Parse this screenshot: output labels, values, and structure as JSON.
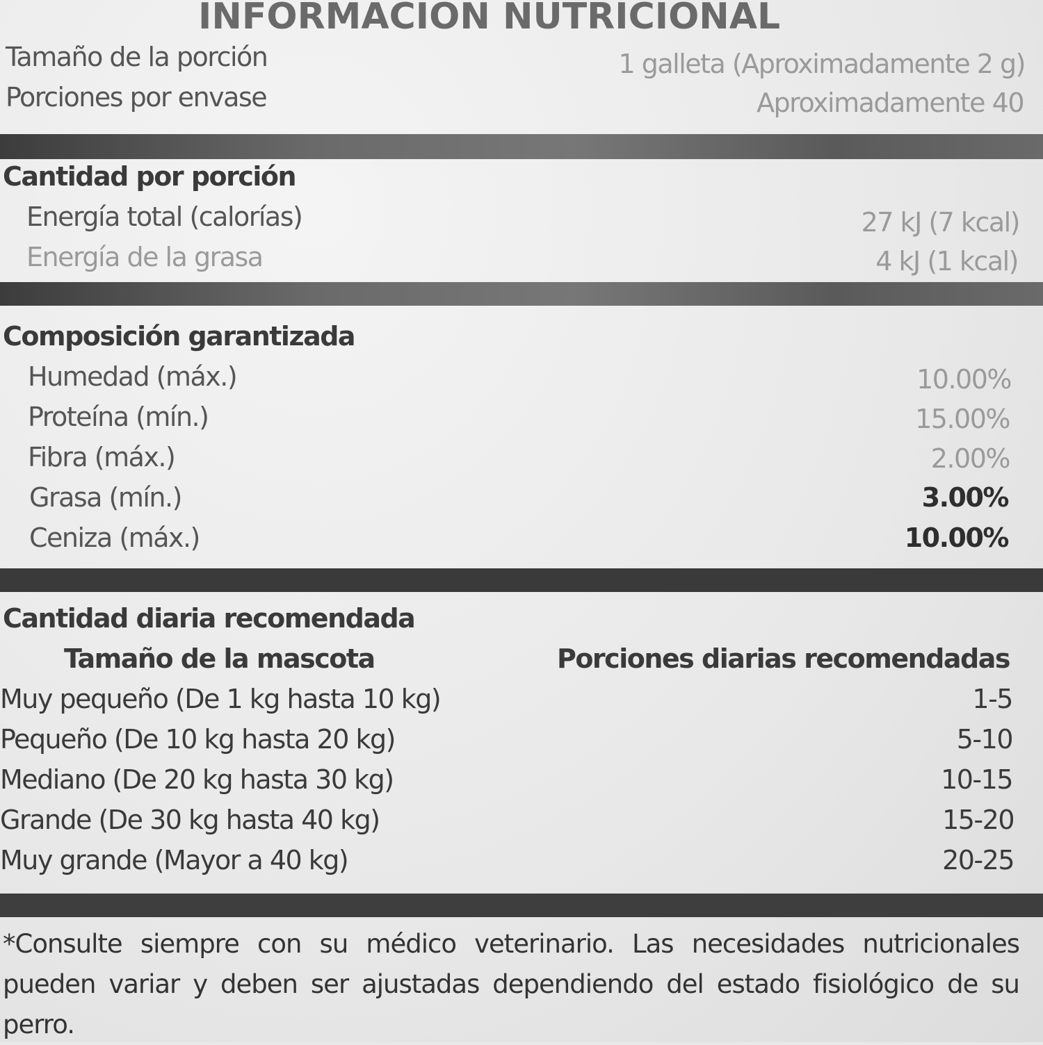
{
  "title": "INFORMACIÓN NUTRICIONAL",
  "serving": {
    "size_label": "Tamaño de la porción",
    "size_value": "1 galleta  (Aproximadamente 2 g)",
    "per_container_label": "Porciones por envase",
    "per_container_value": "Aproximadamente 40"
  },
  "amount_per_serving": {
    "heading": "Cantidad por porción",
    "rows": [
      {
        "label": "Energía total (calorías)",
        "value": "27 kJ (7 kcal)"
      },
      {
        "label": "Energía de la grasa",
        "value": "4 kJ (1 kcal)"
      }
    ]
  },
  "guaranteed_analysis": {
    "heading": "Composición garantizada",
    "rows": [
      {
        "label": "Humedad (máx.)",
        "value": "10.00%"
      },
      {
        "label": "Proteína (mín.)",
        "value": "15.00%"
      },
      {
        "label": "Fibra (máx.)",
        "value": "2.00%"
      },
      {
        "label": "Grasa (mín.)",
        "value": "3.00%"
      },
      {
        "label": "Ceniza (máx.)",
        "value": "10.00%"
      }
    ]
  },
  "daily_recommendation": {
    "heading": "Cantidad diaria recomendada",
    "col_size": "Tamaño de la mascota",
    "col_portions": "Porciones diarias recomendadas",
    "rows": [
      {
        "size": "Muy pequeño (De 1 kg hasta 10 kg)",
        "portions": "1-5"
      },
      {
        "size": "Pequeño (De 10 kg hasta 20 kg)",
        "portions": "5-10"
      },
      {
        "size": "Mediano (De 20 kg hasta 30 kg)",
        "portions": "10-15"
      },
      {
        "size": "Grande (De 30 kg hasta 40 kg)",
        "portions": "15-20"
      },
      {
        "size": "Muy grande (Mayor a 40 kg)",
        "portions": "20-25"
      }
    ]
  },
  "footnote": "*Consulte siempre con su médico veterinario. Las necesidades nutricionales pueden variar y deben ser ajustadas dependiendo del estado fisiológico de su perro."
}
